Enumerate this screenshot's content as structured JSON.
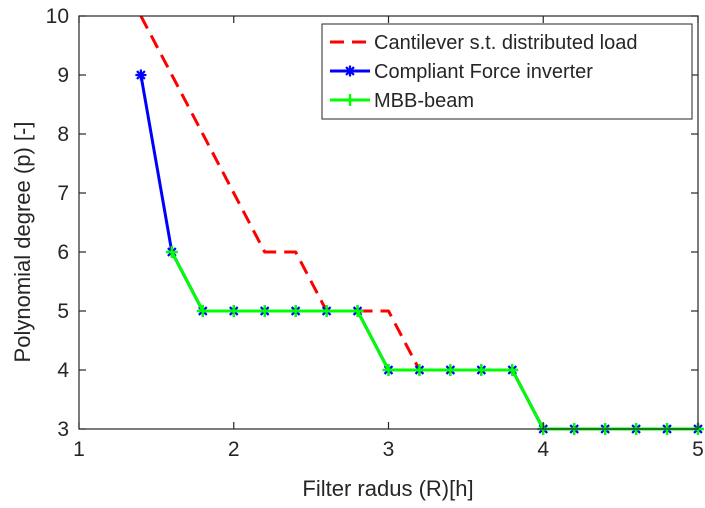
{
  "chart_data": {
    "type": "line",
    "title": "",
    "xlabel": "Filter radus (R)[h]",
    "ylabel": "Polynomial degree (p) [-]",
    "xlim": [
      1,
      5
    ],
    "ylim": [
      3,
      10
    ],
    "xticks": [
      1,
      2,
      3,
      4,
      5
    ],
    "yticks": [
      3,
      4,
      5,
      6,
      7,
      8,
      9,
      10
    ],
    "xtick_labels": [
      "1",
      "2",
      "3",
      "4",
      "5"
    ],
    "ytick_labels": [
      "3",
      "4",
      "5",
      "6",
      "7",
      "8",
      "9",
      "10"
    ],
    "grid": false,
    "legend_position": "top-right",
    "series": [
      {
        "name": "Cantilever s.t. distributed load",
        "color": "#ff0000",
        "line_style": "dashed",
        "marker": "none",
        "x": [
          1.4,
          1.6,
          1.8,
          2.0,
          2.2,
          2.4,
          2.6,
          2.8,
          3.0,
          3.2,
          3.4,
          3.6,
          3.8,
          4.0,
          4.2,
          4.4,
          4.6,
          4.8,
          5.0
        ],
        "y": [
          10,
          9,
          8,
          7,
          6,
          6,
          5,
          5,
          5,
          4,
          4,
          4,
          4,
          3,
          3,
          3,
          3,
          3,
          3
        ]
      },
      {
        "name": "Compliant Force inverter",
        "color": "#0000ff",
        "line_style": "solid",
        "marker": "asterisk",
        "x": [
          1.4,
          1.6,
          1.8,
          2.0,
          2.2,
          2.4,
          2.6,
          2.8,
          3.0,
          3.2,
          3.4,
          3.6,
          3.8,
          4.0,
          4.2,
          4.4,
          4.6,
          4.8,
          5.0
        ],
        "y": [
          9,
          6,
          5,
          5,
          5,
          5,
          5,
          5,
          4,
          4,
          4,
          4,
          4,
          3,
          3,
          3,
          3,
          3,
          3
        ]
      },
      {
        "name": "MBB-beam",
        "color": "#00ff00",
        "line_style": "solid",
        "marker": "plus",
        "x": [
          1.6,
          1.8,
          2.0,
          2.2,
          2.4,
          2.6,
          2.8,
          3.0,
          3.2,
          3.4,
          3.6,
          3.8,
          4.0,
          4.2,
          4.4,
          4.6,
          4.8,
          5.0
        ],
        "y": [
          6,
          5,
          5,
          5,
          5,
          5,
          5,
          4,
          4,
          4,
          4,
          4,
          3,
          3,
          3,
          3,
          3,
          3
        ]
      }
    ]
  }
}
